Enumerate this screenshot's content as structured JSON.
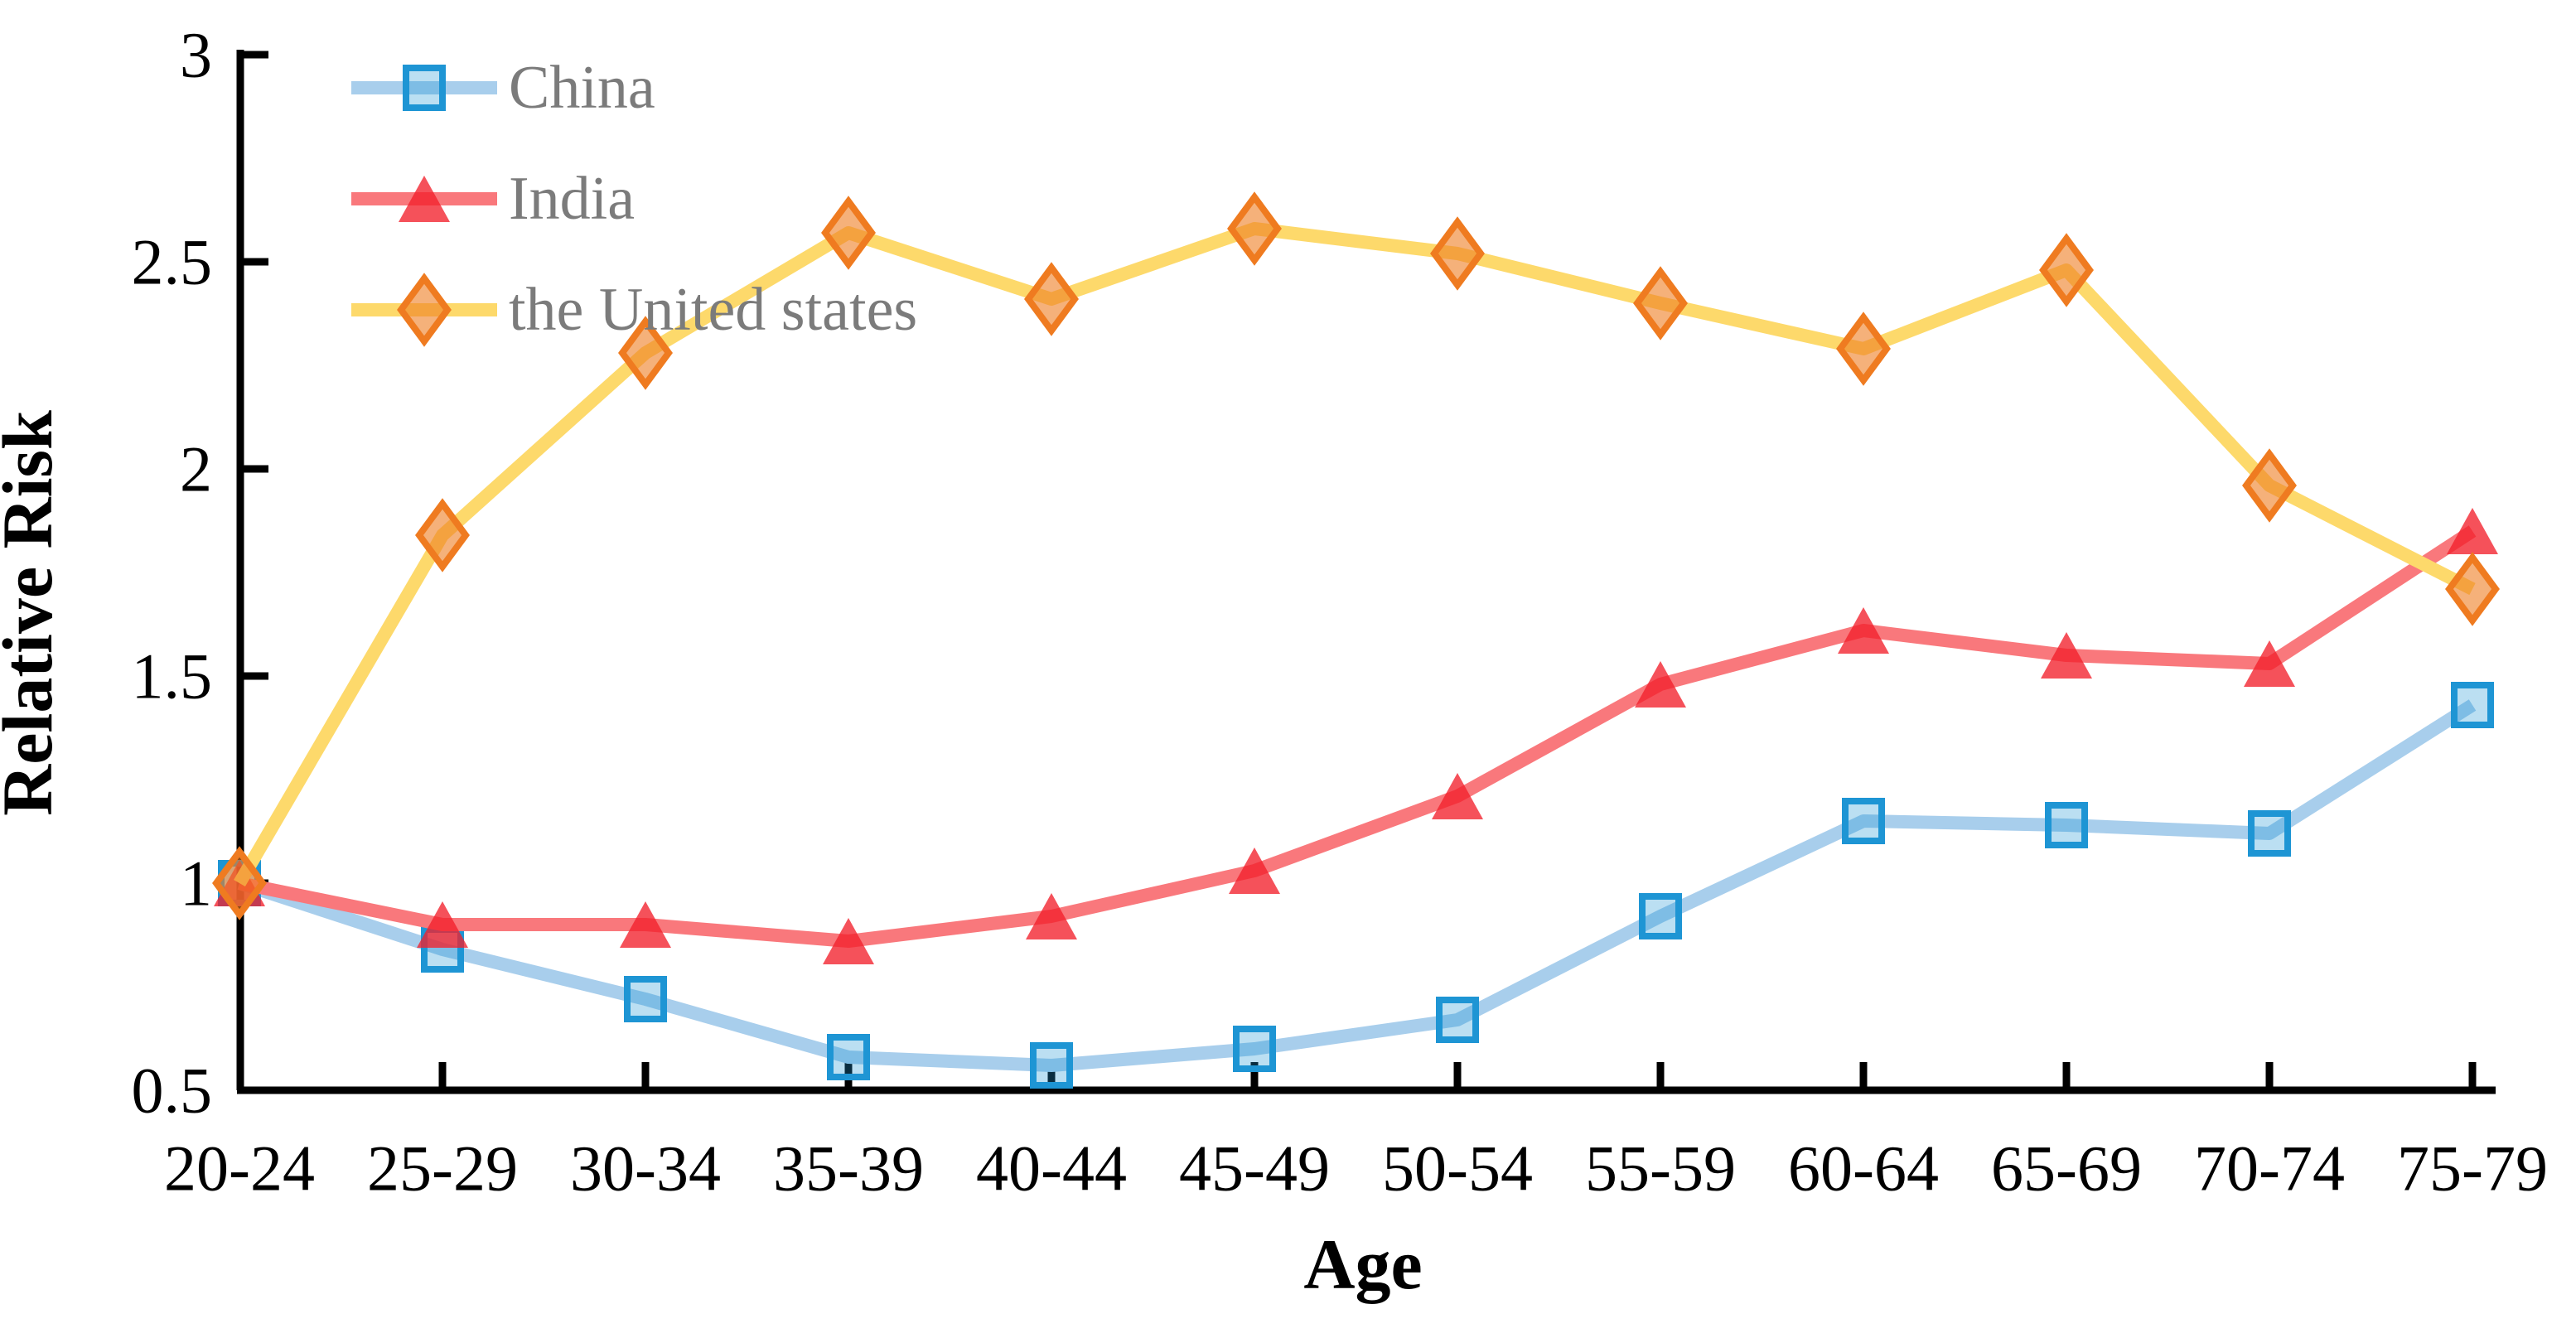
{
  "figure": {
    "background_color": "#ffffff",
    "axis_color": "#000000",
    "legend_text_color": "#7b7b7b"
  },
  "chart_data": {
    "type": "line",
    "title": "",
    "xlabel": "Age",
    "ylabel": "Relative Risk",
    "ylim": [
      0.5,
      3
    ],
    "grid": "off",
    "legend_position": "top-left-inside",
    "y_ticks": [
      3,
      2.5,
      2,
      1.5,
      1,
      0.5
    ],
    "y_tick_labels": [
      "3",
      "2.5",
      "2",
      "1.5",
      "1",
      "0.5"
    ],
    "categories": [
      "20-24",
      "25-29",
      "30-34",
      "35-39",
      "40-44",
      "45-49",
      "50-54",
      "55-59",
      "60-64",
      "65-69",
      "70-74",
      "75-79"
    ],
    "series": [
      {
        "key": "china",
        "name": "China",
        "marker": "square",
        "line_color": "#a8ceec",
        "marker_stroke": "#1e95d4",
        "marker_fill": "#1e95d4",
        "marker_fill_opacity": 0.3,
        "values": [
          1.0,
          0.84,
          0.72,
          0.58,
          0.56,
          0.6,
          0.67,
          0.92,
          1.15,
          1.14,
          1.12,
          1.43
        ]
      },
      {
        "key": "india",
        "name": "India",
        "marker": "triangle",
        "line_color": "#f9787c",
        "marker_stroke": "none",
        "marker_fill": "#f2202c",
        "marker_fill_opacity": 0.78,
        "values": [
          1.0,
          0.9,
          0.9,
          0.86,
          0.92,
          1.03,
          1.21,
          1.48,
          1.61,
          1.55,
          1.53,
          1.85
        ]
      },
      {
        "key": "us",
        "name": "the United states",
        "marker": "diamond",
        "line_color": "#fdd96b",
        "marker_stroke": "#ef7b20",
        "marker_fill": "#ee7d22",
        "marker_fill_opacity": 0.6,
        "values": [
          1.0,
          1.84,
          2.28,
          2.57,
          2.41,
          2.58,
          2.52,
          2.4,
          2.29,
          2.48,
          1.96,
          1.71
        ]
      }
    ]
  }
}
